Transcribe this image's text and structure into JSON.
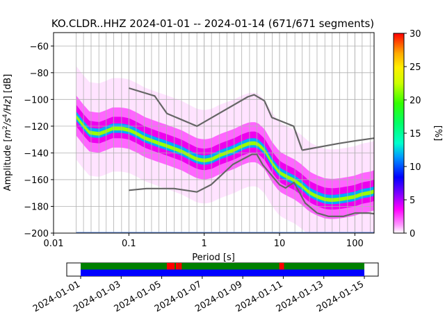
{
  "chart_data": {
    "type": "heatmap",
    "title": "KO.CLDR..HHZ   2024-01-01 -- 2024-01-14  (671/671 segments)",
    "xlabel": "Period [s]",
    "ylabel_main": "Amplitude [",
    "ylabel_math": "m",
    "ylabel_math_sup1": "2",
    "ylabel_math_mid": "/s",
    "ylabel_math_sup2": "4",
    "ylabel_math_end": "/Hz",
    "ylabel_tail": "] [dB]",
    "xscale": "log",
    "xlim": [
      0.01,
      180
    ],
    "ylim": [
      -200,
      -50
    ],
    "xticks": [
      {
        "value": 0.01,
        "label": "0.01"
      },
      {
        "value": 0.1,
        "label": "0.1"
      },
      {
        "value": 1,
        "label": "1"
      },
      {
        "value": 10,
        "label": "10"
      },
      {
        "value": 100,
        "label": "100"
      }
    ],
    "yticks": [
      {
        "value": -60,
        "label": "−60"
      },
      {
        "value": -80,
        "label": "−80"
      },
      {
        "value": -100,
        "label": "−100"
      },
      {
        "value": -120,
        "label": "−120"
      },
      {
        "value": -140,
        "label": "−140"
      },
      {
        "value": -160,
        "label": "−160"
      },
      {
        "value": -180,
        "label": "−180"
      },
      {
        "value": -200,
        "label": "−200"
      }
    ],
    "period_gridlines": [
      0.02,
      0.025,
      0.0315,
      0.04,
      0.05,
      0.063,
      0.08,
      0.1,
      0.125,
      0.16,
      0.2,
      0.25,
      0.315,
      0.4,
      0.5,
      0.63,
      0.8,
      1,
      1.25,
      1.6,
      2,
      2.5,
      3.15,
      4,
      5,
      6.3,
      8,
      10,
      12.5,
      16,
      20,
      25,
      31.5,
      40,
      50,
      63,
      80,
      100,
      125,
      160
    ],
    "grid": true,
    "colorbar": {
      "label": "[%]",
      "min": 0,
      "max": 30,
      "ticks": [
        "0",
        "5",
        "10",
        "15",
        "20",
        "25",
        "30"
      ]
    },
    "noise_models": {
      "nhnm": {
        "x": [
          0.1,
          0.22,
          0.32,
          0.8,
          3.8,
          4.6,
          6.3,
          7.9,
          15.4,
          20
        ],
        "y": [
          -91.5,
          -97.4,
          -110.5,
          -120,
          -98,
          -96.5,
          -101,
          -113.5,
          -120,
          -138
        ]
      },
      "nlnm_upper": {
        "x": [
          20,
          60,
          100,
          180
        ],
        "y": [
          -138,
          -133,
          -131,
          -129
        ]
      },
      "nlnm": {
        "x": [
          0.1,
          0.17,
          0.4,
          0.8,
          1.24,
          2.4,
          4.3,
          5,
          6,
          10,
          12,
          15.6,
          21.9,
          31.6,
          45,
          70,
          101,
          154,
          180
        ],
        "y": [
          -168,
          -166.7,
          -166.7,
          -169.2,
          -163.7,
          -148.6,
          -141.1,
          -141.1,
          -149,
          -163.8,
          -166.2,
          -162.1,
          -177.5,
          -185,
          -187.5,
          -187.5,
          -185,
          -185,
          -185.5
        ]
      }
    },
    "psd_mode": {
      "x": [
        0.02,
        0.025,
        0.03,
        0.04,
        0.05,
        0.06,
        0.08,
        0.1,
        0.13,
        0.16,
        0.2,
        0.25,
        0.32,
        0.4,
        0.5,
        0.63,
        0.8,
        1,
        1.25,
        1.6,
        2,
        2.5,
        3.2,
        4,
        5,
        6.3,
        8,
        10,
        12.5,
        16,
        20,
        25,
        32,
        40,
        50,
        63,
        80,
        100,
        125,
        160,
        180
      ],
      "y": [
        -113,
        -120,
        -125,
        -126,
        -124,
        -122,
        -122,
        -123,
        -126,
        -129,
        -131,
        -133,
        -135,
        -137,
        -139,
        -142,
        -145,
        -146,
        -145,
        -142,
        -140,
        -138,
        -135,
        -133,
        -133,
        -138,
        -148,
        -155,
        -158,
        -161,
        -165,
        -170,
        -173,
        -175,
        -175.5,
        -175,
        -174,
        -173,
        -171,
        -170,
        -169
      ]
    },
    "psd_spread": [
      {
        "level": 1,
        "lo": 32,
        "hi": 38
      },
      {
        "level": 3,
        "lo": 14,
        "hi": 16
      },
      {
        "level": 8,
        "lo": 7,
        "hi": 9
      },
      {
        "level": 15,
        "lo": 3,
        "hi": 4
      },
      {
        "level": 24,
        "lo": 1.2,
        "hi": 1.6
      }
    ],
    "coverage": {
      "start": "2024-01-01",
      "end": "2024-01-15",
      "date_ticks": [
        "2024-01-01",
        "2024-01-03",
        "2024-01-05",
        "2024-01-07",
        "2024-01-09",
        "2024-01-11",
        "2024-01-13",
        "2024-01-15"
      ],
      "data_start": "2024-01-01",
      "data_end": "2024-01-15",
      "gap_days": [
        4.25,
        4.35,
        4.45,
        4.5,
        4.7,
        4.85,
        9.8,
        9.9
      ]
    },
    "colors": {
      "nhnm": "#666666",
      "grid": "#b0b0b0",
      "coverage_top": "#008000",
      "coverage_bottom": "#0000ff",
      "gap": "#ff0000"
    }
  }
}
